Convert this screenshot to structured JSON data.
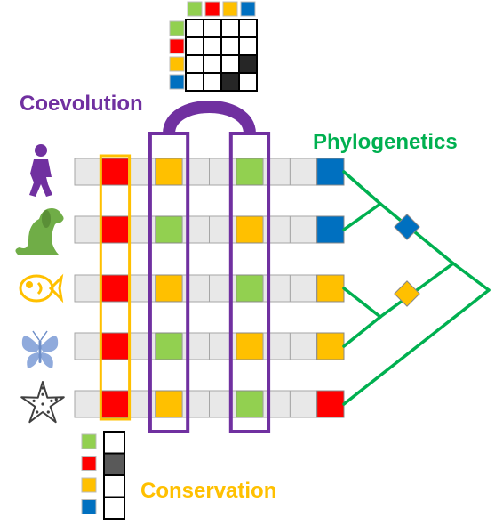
{
  "labels": {
    "coevolution": "Coevolution",
    "phylogenetics": "Phylogenetics",
    "conservation": "Conservation"
  },
  "colors": {
    "green": "#92d050",
    "red": "#ff0000",
    "yellow": "#ffc000",
    "blue": "#0070c0",
    "gray_cell": "#e8e8e8",
    "purple": "#7030a0",
    "tree": "#00b050",
    "dark_cell": "#595959",
    "black_cell": "#262626",
    "conservation_outline": "#ffc000"
  },
  "legend_colors": [
    "green",
    "red",
    "yellow",
    "blue"
  ],
  "species": [
    {
      "name": "person-icon",
      "color": "#7030a0"
    },
    {
      "name": "dog-icon",
      "color": "#70ad47"
    },
    {
      "name": "fish-icon",
      "color": "#ffc000"
    },
    {
      "name": "butterfly-icon",
      "color": "#8faadc"
    },
    {
      "name": "starfish-icon",
      "color": "#404040"
    }
  ],
  "alignment": {
    "columns": 10,
    "rows": [
      [
        "gray",
        "red",
        "gray",
        "yellow",
        "gray",
        "gray",
        "green",
        "gray",
        "gray",
        "blue"
      ],
      [
        "gray",
        "red",
        "gray",
        "green",
        "gray",
        "gray",
        "yellow",
        "gray",
        "gray",
        "blue"
      ],
      [
        "gray",
        "red",
        "gray",
        "yellow",
        "gray",
        "gray",
        "green",
        "gray",
        "gray",
        "yellow"
      ],
      [
        "gray",
        "red",
        "gray",
        "green",
        "gray",
        "gray",
        "yellow",
        "gray",
        "gray",
        "yellow"
      ],
      [
        "gray",
        "red",
        "gray",
        "yellow",
        "gray",
        "gray",
        "green",
        "gray",
        "gray",
        "red"
      ]
    ],
    "conservation_column": 1,
    "coevolution_columns": [
      3,
      6
    ]
  },
  "coevolution_matrix": [
    [
      "white",
      "white",
      "white",
      "white"
    ],
    [
      "white",
      "white",
      "white",
      "white"
    ],
    [
      "white",
      "white",
      "white",
      "black"
    ],
    [
      "white",
      "white",
      "black",
      "white"
    ]
  ],
  "conservation_matrix": [
    "white",
    "dark",
    "white",
    "white"
  ],
  "tree_markers": [
    "blue",
    "yellow"
  ]
}
